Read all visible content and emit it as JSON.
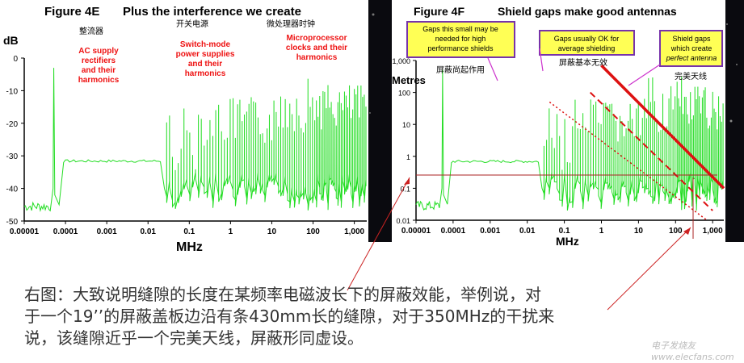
{
  "left_chart": {
    "figure_title": "Figure 4E",
    "subtitle": "Plus the interference we create",
    "y_unit": "dB",
    "x_unit": "MHz",
    "y_ticks": [
      "0",
      "-10",
      "-20",
      "-30",
      "-40",
      "-50"
    ],
    "x_ticks": [
      "0.00001",
      "0.0001",
      "0.001",
      "0.01",
      "0.1",
      "1",
      "10",
      "100",
      "1,000"
    ],
    "regions": [
      {
        "cn": "整流器",
        "en": [
          "AC supply",
          "rectifiers",
          "and their",
          "harmonics"
        ]
      },
      {
        "cn": "开关电源",
        "en": [
          "Switch-mode",
          "power supplies",
          "and their",
          "harmonics"
        ]
      },
      {
        "cn": "微处理器时钟",
        "en": [
          "Microprocessor",
          "clocks and their",
          "harmonics"
        ]
      }
    ]
  },
  "right_chart": {
    "figure_title": "Figure 4F",
    "subtitle": "Shield gaps make good antennas",
    "y_unit": "Metres",
    "x_unit": "MHz",
    "y_ticks": [
      "1,000",
      "100",
      "10",
      "1",
      "0.1",
      "0.01"
    ],
    "x_ticks": [
      "0.00001",
      "0.0001",
      "0.001",
      "0.01",
      "0.1",
      "1",
      "10",
      "100",
      "1,000"
    ],
    "callouts": [
      {
        "en": [
          "Gaps this small may be",
          "needed for high",
          "performance shields"
        ],
        "cn": "屏蔽尚起作用"
      },
      {
        "en": [
          "Gaps usually OK for",
          "average shielding"
        ],
        "cn": "屏蔽基本无效"
      },
      {
        "en": [
          "Shield gaps",
          "which create",
          "perfect antenna"
        ],
        "cn": "完美天线"
      }
    ]
  },
  "caption": [
    "右图：大致说明缝隙的长度在某频率电磁波长下的屏蔽效能，举例说，对",
    "于一个19’’的屏蔽盖板边沿有条430mm长的缝隙，对于350MHz的干扰来",
    "说，该缝隙近乎一个完美天线，屏蔽形同虚设。"
  ],
  "watermark": "电子发烧友 www.elecfans.com",
  "colors": {
    "signal": "#22dd22",
    "accent": "#dd1111",
    "label_box": "#ffff55",
    "box_border": "#7733aa"
  },
  "chart_data": [
    {
      "type": "line",
      "title": "Figure 4E Plus the interference we create",
      "xlabel": "MHz",
      "ylabel": "dB",
      "xscale": "log",
      "xlim": [
        1e-05,
        2000
      ],
      "ylim": [
        -50,
        0
      ],
      "series": [
        {
          "x": [
            1e-05,
            2e-05,
            4e-05,
            5e-05,
            6e-05,
            8e-05,
            0.0001,
            0.00015,
            0.001,
            0.01,
            0.02,
            0.03,
            0.05,
            0.08,
            0.1,
            0.2,
            0.5,
            1,
            2,
            5,
            10,
            20,
            50,
            100,
            200,
            500,
            1000,
            1500
          ],
          "values": [
            -48,
            -48,
            -46,
            -3,
            -40,
            -32,
            -32,
            -32,
            -32,
            -32,
            -32,
            -42,
            -15,
            -35,
            -15,
            -38,
            -13,
            -38,
            -17,
            -38,
            -15,
            -40,
            -5,
            -40,
            -11,
            -42,
            -10,
            -43
          ]
        }
      ]
    },
    {
      "type": "line",
      "title": "Figure 4F Shield gaps make good antennas",
      "xlabel": "MHz",
      "ylabel": "Metres",
      "xscale": "log",
      "yscale": "log",
      "xlim": [
        1e-05,
        2000
      ],
      "ylim": [
        0.01,
        1000
      ],
      "series": [
        {
          "x": [
            0.04,
            700
          ],
          "values": [
            50,
            0.01
          ]
        },
        {
          "x": [
            0.5,
            1000
          ],
          "values": [
            100,
            0.02
          ]
        },
        {
          "x": [
            1,
            2000
          ],
          "values": [
            700,
            0.1
          ]
        },
        {
          "x": [
            1e-05,
            1000
          ],
          "values": [
            0.43,
            0.43
          ]
        }
      ]
    }
  ]
}
